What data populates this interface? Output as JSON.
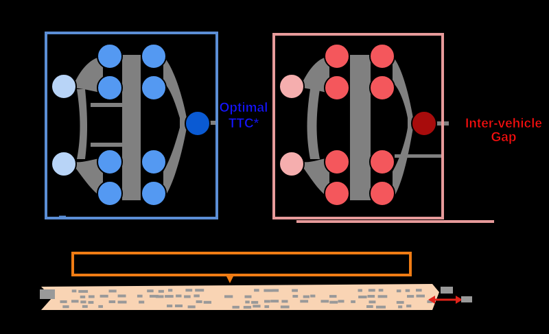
{
  "left_network": {
    "output_label_line1": "Optimal",
    "output_label_line2": "TTC*",
    "colors": {
      "frame": "#5b8ed6",
      "input": "#b8d4f7",
      "hidden": "#5499f2",
      "output": "#0a5ad3",
      "label": "#1515ff"
    }
  },
  "right_network": {
    "output_label_line1": "Inter-vehicle",
    "output_label_line2": "Gap",
    "colors": {
      "frame": "#e79a9a",
      "input": "#f5aeae",
      "hidden": "#f4575c",
      "output": "#a80c0c",
      "label": "#ff0f0f"
    }
  },
  "colors": {
    "background": "#000000",
    "connection": "#808080",
    "node_stroke": "#000000",
    "bar_border": "#f07c14",
    "road_fill": "#f9d4b4",
    "road_block": "#999999",
    "arrow": "#e2231a"
  }
}
